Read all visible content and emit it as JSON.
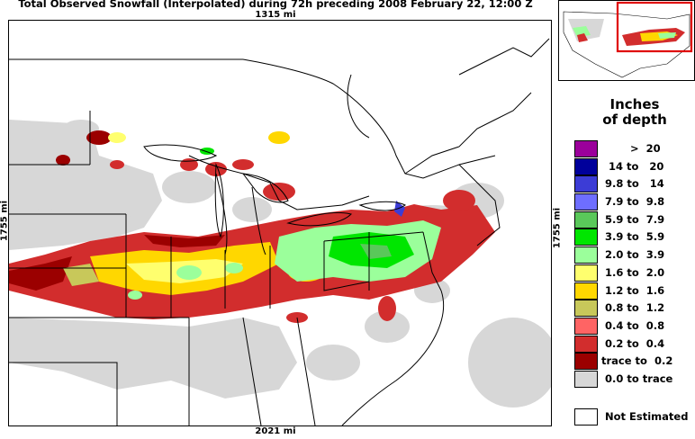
{
  "header": {
    "title": "Total Observed Snowfall (Interpolated) during 72h preceding 2008 February 22, 12:00 Z",
    "dim_top": "1315 mi",
    "dim_bottom": "2021 mi",
    "dim_left": "1755 mi",
    "dim_right": "1755 mi"
  },
  "legend": {
    "title_line1": "Inches",
    "title_line2": "of depth",
    "items": [
      {
        "label": "        >  20",
        "color": "#9b009b"
      },
      {
        "label": "  14 to   20",
        "color": "#00009b"
      },
      {
        "label": " 9.8 to   14",
        "color": "#3c3cd6"
      },
      {
        "label": " 7.9 to  9.8",
        "color": "#6e6eff"
      },
      {
        "label": " 5.9 to  7.9",
        "color": "#5ac85a"
      },
      {
        "label": " 3.9 to  5.9",
        "color": "#00e600"
      },
      {
        "label": " 2.0 to  3.9",
        "color": "#9bff9b"
      },
      {
        "label": " 1.6 to  2.0",
        "color": "#ffff6e"
      },
      {
        "label": " 1.2 to  1.6",
        "color": "#ffd700"
      },
      {
        "label": " 0.8 to  1.2",
        "color": "#c8c85a"
      },
      {
        "label": " 0.4 to  0.8",
        "color": "#ff6464"
      },
      {
        "label": " 0.2 to  0.4",
        "color": "#d22d2d"
      },
      {
        "label": "trace to  0.2",
        "color": "#9b0000"
      },
      {
        "label": " 0.0 to trace",
        "color": "#d7d7d7"
      }
    ],
    "not_estimated_label": "Not Estimated"
  }
}
